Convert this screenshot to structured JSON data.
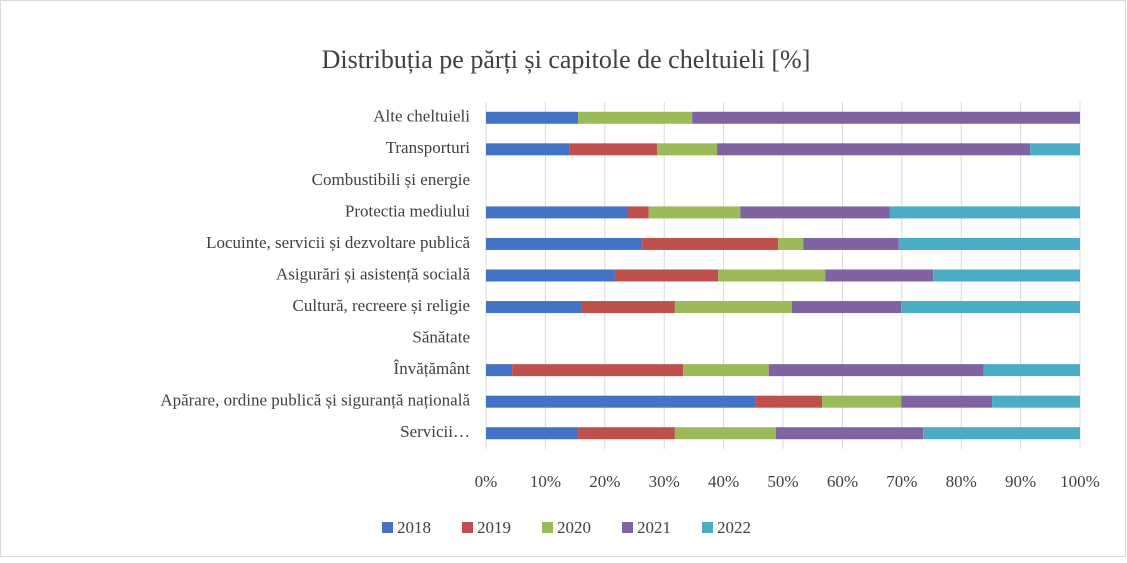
{
  "chart_data": {
    "type": "stacked_barh",
    "title": "Distribuția pe părți și capitole de cheltuieli [%]",
    "categories": [
      "Alte cheltuieli",
      "Transporturi",
      "Combustibili și energie",
      "Protectia mediului",
      "Locuinte, servicii și dezvoltare publică",
      "Asigurări și asistență socială",
      "Cultură, recreere și religie",
      "Sănătate",
      "Învățământ",
      "Apărare, ordine publică și siguranță națională",
      "Servicii…"
    ],
    "series": [
      {
        "name": "2018",
        "color": "#4472c4",
        "values": [
          15.5,
          14.0,
          0,
          23.9,
          26.3,
          21.7,
          16.0,
          0,
          4.4,
          45.3,
          15.5
        ]
      },
      {
        "name": "2019",
        "color": "#c0504d",
        "values": [
          0,
          14.8,
          0,
          3.5,
          22.9,
          17.4,
          15.8,
          0,
          28.8,
          11.3,
          16.3
        ]
      },
      {
        "name": "2020",
        "color": "#9bbb59",
        "values": [
          19.2,
          10.1,
          0,
          15.4,
          4.2,
          18.0,
          19.7,
          0,
          14.4,
          13.3,
          17.0
        ]
      },
      {
        "name": "2021",
        "color": "#8064a2",
        "values": [
          65.3,
          52.7,
          0,
          25.2,
          16.1,
          18.2,
          18.4,
          0,
          36.2,
          15.3,
          24.8
        ]
      },
      {
        "name": "2022",
        "color": "#4bacc6",
        "values": [
          0,
          8.4,
          0,
          32.0,
          30.5,
          24.7,
          30.1,
          0,
          16.2,
          14.8,
          26.4
        ]
      }
    ],
    "xlim": [
      0,
      100
    ],
    "xticks": [
      {
        "value": 0,
        "label": "0%"
      },
      {
        "value": 10,
        "label": "10%"
      },
      {
        "value": 20,
        "label": "20%"
      },
      {
        "value": 30,
        "label": "30%"
      },
      {
        "value": 40,
        "label": "40%"
      },
      {
        "value": 50,
        "label": "50%"
      },
      {
        "value": 60,
        "label": "60%"
      },
      {
        "value": 70,
        "label": "70%"
      },
      {
        "value": 80,
        "label": "80%"
      },
      {
        "value": 90,
        "label": "90%"
      },
      {
        "value": 100,
        "label": "100%"
      }
    ],
    "grid": true,
    "legend": "bottom"
  }
}
